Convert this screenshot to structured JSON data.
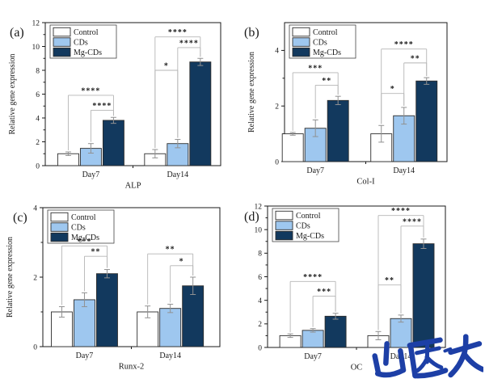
{
  "figure": {
    "watermark": "山医大",
    "watermark_color": "#1d3fa6",
    "bar_outline_color": "#2d2d2d",
    "error_bar_color": "#919191",
    "bracket_color": "#b5b5b5"
  },
  "chart_data": [
    {
      "type": "bar",
      "panel_label": "(a)",
      "xlabel": "ALP",
      "ylabel": "Relative gene expression",
      "ylim": [
        0,
        12
      ],
      "yticks": [
        0,
        2,
        4,
        6,
        8,
        10,
        12
      ],
      "yminor": [
        1,
        3,
        5,
        7,
        9,
        11
      ],
      "categories": [
        "Day7",
        "Day14"
      ],
      "legend_position": "top-left",
      "series": [
        {
          "name": "Control",
          "color": "#ffffff",
          "values": [
            1.0,
            1.0
          ],
          "errors": [
            0.15,
            0.35
          ]
        },
        {
          "name": "CDs",
          "color": "#9ec7ef",
          "values": [
            1.45,
            1.85
          ],
          "errors": [
            0.4,
            0.35
          ]
        },
        {
          "name": "Mg-CDs",
          "color": "#12395e",
          "values": [
            3.8,
            8.7
          ],
          "errors": [
            0.25,
            0.3
          ]
        }
      ],
      "significance": [
        {
          "category": 0,
          "pair": [
            0,
            2
          ],
          "y": 5.9,
          "stars": "****"
        },
        {
          "category": 0,
          "pair": [
            1,
            2
          ],
          "y": 4.65,
          "stars": "****"
        },
        {
          "category": 1,
          "pair": [
            0,
            1
          ],
          "y": 8.0,
          "stars": "*"
        },
        {
          "category": 1,
          "pair": [
            1,
            2
          ],
          "y": 9.9,
          "stars": "****"
        },
        {
          "category": 1,
          "pair": [
            0,
            2
          ],
          "y": 10.8,
          "stars": "****"
        }
      ]
    },
    {
      "type": "bar",
      "panel_label": "(b)",
      "xlabel": "Col-I",
      "ylabel": "Relative gene expression",
      "ylim": [
        0,
        5
      ],
      "yticks": [
        0,
        2,
        4
      ],
      "yminor": [
        1,
        3
      ],
      "categories": [
        "Day7",
        "Day14"
      ],
      "legend_position": "top-left",
      "series": [
        {
          "name": "Control",
          "color": "#ffffff",
          "values": [
            1.0,
            1.0
          ],
          "errors": [
            0.05,
            0.3
          ]
        },
        {
          "name": "CDs",
          "color": "#9ec7ef",
          "values": [
            1.2,
            1.65
          ],
          "errors": [
            0.3,
            0.3
          ]
        },
        {
          "name": "Mg-CDs",
          "color": "#12395e",
          "values": [
            2.2,
            2.9
          ],
          "errors": [
            0.15,
            0.12
          ]
        }
      ],
      "significance": [
        {
          "category": 0,
          "pair": [
            0,
            2
          ],
          "y": 3.2,
          "stars": "***"
        },
        {
          "category": 0,
          "pair": [
            1,
            2
          ],
          "y": 2.75,
          "stars": "**"
        },
        {
          "category": 1,
          "pair": [
            0,
            1
          ],
          "y": 2.45,
          "stars": "*"
        },
        {
          "category": 1,
          "pair": [
            1,
            2
          ],
          "y": 3.55,
          "stars": "**"
        },
        {
          "category": 1,
          "pair": [
            0,
            2
          ],
          "y": 4.05,
          "stars": "****"
        }
      ]
    },
    {
      "type": "bar",
      "panel_label": "(c)",
      "xlabel": "Runx-2",
      "ylabel": "Relative gene expression",
      "ylim": [
        0,
        4
      ],
      "yticks": [
        0,
        2,
        4
      ],
      "yminor": [
        1,
        3
      ],
      "categories": [
        "Day7",
        "Day14"
      ],
      "legend_position": "top-left",
      "series": [
        {
          "name": "Control",
          "color": "#ffffff",
          "values": [
            1.0,
            1.0
          ],
          "errors": [
            0.15,
            0.17
          ]
        },
        {
          "name": "CDs",
          "color": "#9ec7ef",
          "values": [
            1.35,
            1.1
          ],
          "errors": [
            0.2,
            0.12
          ]
        },
        {
          "name": "Mg-CDs",
          "color": "#12395e",
          "values": [
            2.1,
            1.75
          ],
          "errors": [
            0.12,
            0.25
          ]
        }
      ],
      "significance": [
        {
          "category": 0,
          "pair": [
            0,
            2
          ],
          "y": 2.9,
          "stars": "***"
        },
        {
          "category": 0,
          "pair": [
            1,
            2
          ],
          "y": 2.6,
          "stars": "**"
        },
        {
          "category": 1,
          "pair": [
            0,
            2
          ],
          "y": 2.67,
          "stars": "**"
        },
        {
          "category": 1,
          "pair": [
            1,
            2
          ],
          "y": 2.33,
          "stars": "*"
        }
      ]
    },
    {
      "type": "bar",
      "panel_label": "(d)",
      "xlabel": "OC",
      "ylabel": "",
      "ylim": [
        0,
        12
      ],
      "yticks": [
        0,
        2,
        4,
        6,
        8,
        10,
        12
      ],
      "yminor": [
        1,
        3,
        5,
        7,
        9,
        11
      ],
      "categories": [
        "Day7",
        "Day14"
      ],
      "legend_position": "top-left",
      "series": [
        {
          "name": "Control",
          "color": "#ffffff",
          "values": [
            1.0,
            1.0
          ],
          "errors": [
            0.15,
            0.35
          ]
        },
        {
          "name": "CDs",
          "color": "#9ec7ef",
          "values": [
            1.45,
            2.45
          ],
          "errors": [
            0.15,
            0.3
          ]
        },
        {
          "name": "Mg-CDs",
          "color": "#12395e",
          "values": [
            2.65,
            8.8
          ],
          "errors": [
            0.25,
            0.4
          ]
        }
      ],
      "significance": [
        {
          "category": 0,
          "pair": [
            0,
            2
          ],
          "y": 5.6,
          "stars": "****"
        },
        {
          "category": 0,
          "pair": [
            1,
            2
          ],
          "y": 4.35,
          "stars": "***"
        },
        {
          "category": 1,
          "pair": [
            0,
            1
          ],
          "y": 5.3,
          "stars": "**"
        },
        {
          "category": 1,
          "pair": [
            1,
            2
          ],
          "y": 10.3,
          "stars": "****"
        },
        {
          "category": 1,
          "pair": [
            0,
            2
          ],
          "y": 11.2,
          "stars": "****"
        }
      ]
    }
  ]
}
